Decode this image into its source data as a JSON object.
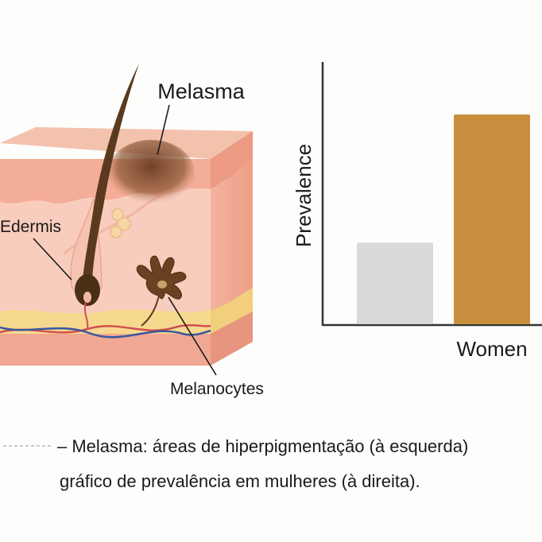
{
  "labels": {
    "melasma": "Melasma",
    "edermis": "Edermis",
    "melanocytes": "Melanocytes"
  },
  "chart_data": {
    "type": "bar",
    "categories": [
      "",
      "Women"
    ],
    "values": [
      28,
      72
    ],
    "ylabel": "Prevalence",
    "xlabel": "",
    "ylim": [
      0,
      90
    ],
    "colors": [
      "#d9d9d9",
      "#c98f3e"
    ],
    "grid": false
  },
  "caption": {
    "line1": "– Melasma: áreas de hiperpigmentação (à esquerda)",
    "line2": "gráfico de prevalência em mulheres (à direita)."
  },
  "colors": {
    "epidermis": "#f6b9a5",
    "dermis": "#f8c9b8",
    "fat": "#f7df9e",
    "hair": "#5a3a1e",
    "melasma_spot": "#7a4a2a"
  }
}
